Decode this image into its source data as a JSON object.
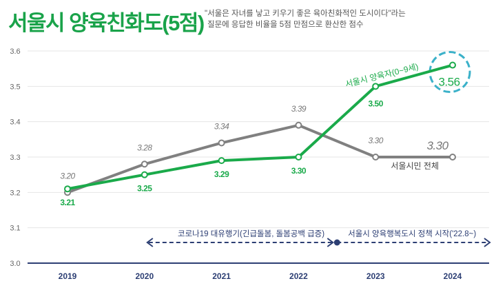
{
  "title": "서울시 양육친화도(5점)",
  "subtitle": [
    "\"서울은 자녀를 낳고 키우기 좋은 육아친화적인 도시이다\"라는",
    "질문에 응답한 비율을 5점 만점으로 환산한 점수"
  ],
  "chart_data": {
    "type": "line",
    "title": "서울시 양육친화도(5점)",
    "categories": [
      "2019",
      "2020",
      "2021",
      "2022",
      "2023",
      "2024"
    ],
    "ylim": [
      3.0,
      3.6
    ],
    "yticks": [
      "3.0",
      "3.1",
      "3.2",
      "3.3",
      "3.4",
      "3.5",
      "3.6"
    ],
    "grid": true,
    "series": [
      {
        "name": "서울시민 전체",
        "color": "#808080",
        "values": [
          3.2,
          3.28,
          3.34,
          3.39,
          3.3,
          3.3
        ],
        "labels": [
          "3.20",
          "3.28",
          "3.34",
          "3.39",
          "3.30",
          "3.30"
        ]
      },
      {
        "name": "서울시 양육자(0~9세)",
        "color": "#1aaa4a",
        "values": [
          3.21,
          3.25,
          3.29,
          3.3,
          3.5,
          3.56
        ],
        "labels": [
          "3.21",
          "3.25",
          "3.29",
          "3.30",
          "3.50",
          "3.56"
        ]
      }
    ],
    "annotations": [
      {
        "text": "코로나19 대유행기(긴급돌봄, 돌봄공백 급증)",
        "from": "2020",
        "to": "2022.5"
      },
      {
        "text": "서울시 양육행복도시 정책 시작('22.8~)",
        "from": "2022.5",
        "to": "2024.5"
      }
    ],
    "highlight": "3.56",
    "colors": {
      "axis": "#2c3e73",
      "annotation": "#2c3e73",
      "grid": "#e5e5e5"
    }
  }
}
